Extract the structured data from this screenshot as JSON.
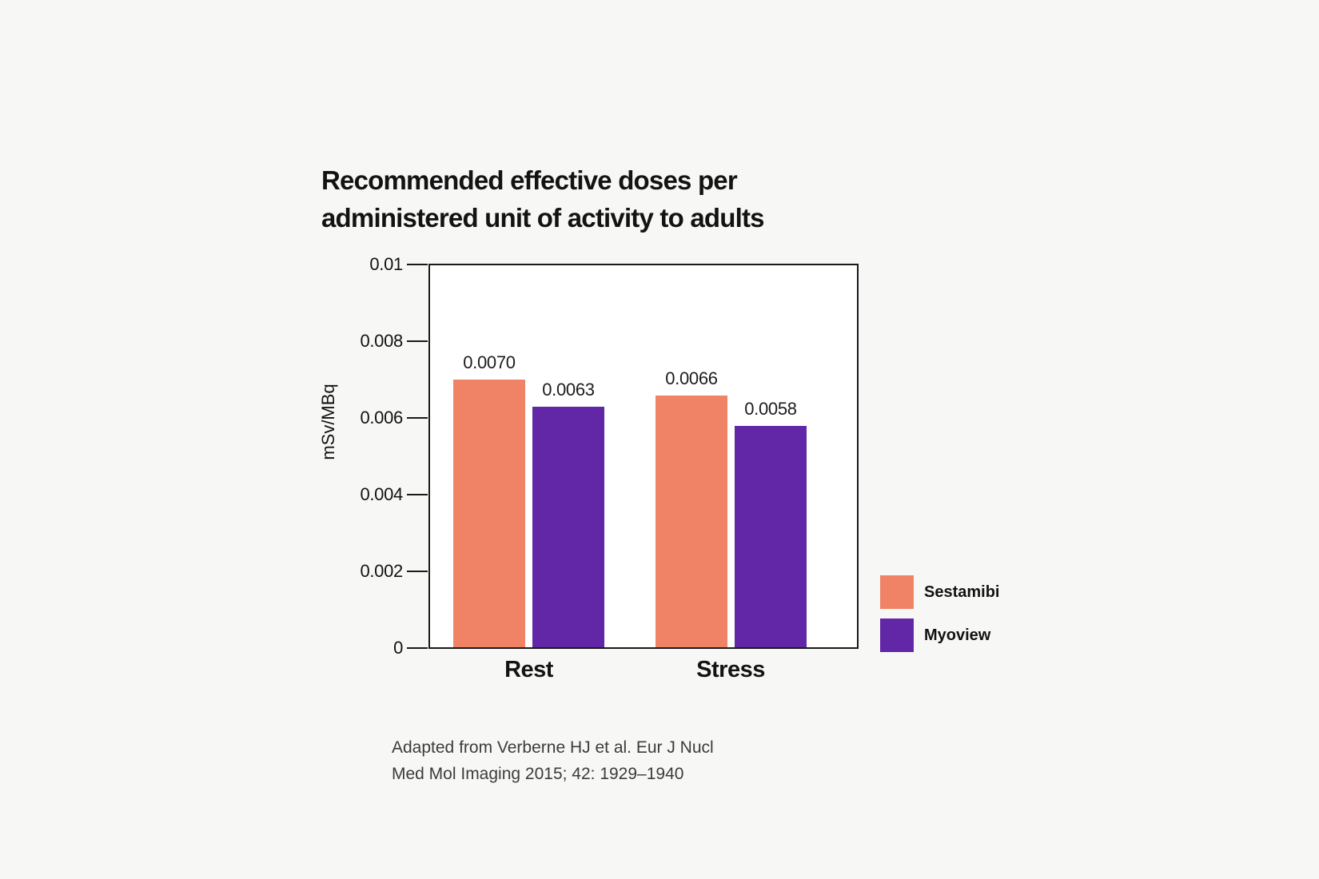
{
  "chart": {
    "title": {
      "line1": "Recommended effective doses per",
      "line2": "administered unit of activity to adults"
    },
    "y_axis_label": "mSv/MBq"
  },
  "chart_data": {
    "type": "bar",
    "title": "Recommended effective doses per administered unit of activity to adults",
    "categories": [
      "Rest",
      "Stress"
    ],
    "series": [
      {
        "name": "Sestamibi",
        "color": "#F08365",
        "values": [
          0.007,
          0.0066
        ],
        "value_labels": [
          "0.0070",
          "0.0066"
        ]
      },
      {
        "name": "Myoview",
        "color": "#6127A7",
        "values": [
          0.0063,
          0.0058
        ],
        "value_labels": [
          "0.0063",
          "0.0058"
        ]
      }
    ],
    "xlabel": "",
    "ylabel": "mSv/MBq",
    "ylim": [
      0,
      0.01
    ],
    "yticks": [
      {
        "value": 0,
        "label": "0"
      },
      {
        "value": 0.002,
        "label": "0.002"
      },
      {
        "value": 0.004,
        "label": "0.004"
      },
      {
        "value": 0.006,
        "label": "0.006"
      },
      {
        "value": 0.008,
        "label": "0.008"
      },
      {
        "value": 0.01,
        "label": "0.01"
      }
    ],
    "grid": false,
    "bar_value_labels": true,
    "legend_position": "right-bottom"
  },
  "legend": {
    "items": [
      {
        "label": "Sestamibi",
        "color": "#F08365"
      },
      {
        "label": "Myoview",
        "color": "#6127A7"
      }
    ]
  },
  "caption": {
    "line1": "Adapted from Verberne HJ et al. Eur J Nucl",
    "line2": "Med Mol Imaging 2015; 42: 1929–1940"
  },
  "colors": {
    "background": "#F7F7F6",
    "plot_background": "#FFFFFF",
    "axis": "#1A1A1A",
    "title_text": "#131313",
    "caption_text": "#3C3C3C",
    "sestamibi": "#F08365",
    "myoview": "#6127A7"
  }
}
